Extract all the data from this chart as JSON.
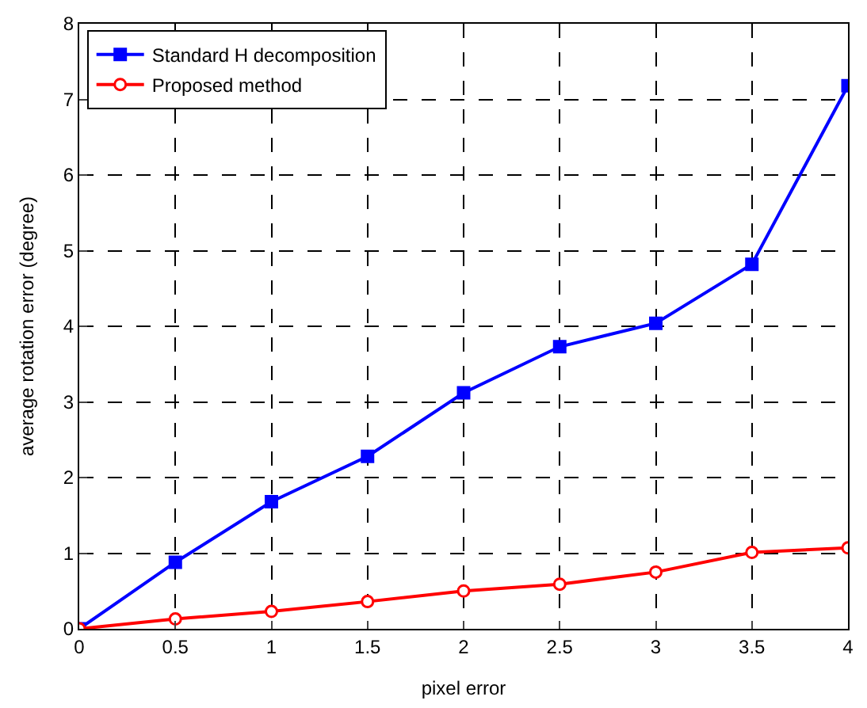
{
  "chart_data": {
    "type": "line",
    "xlabel": "pixel error",
    "ylabel": "average rotation error (degree)",
    "x": [
      0,
      0.5,
      1,
      1.5,
      2,
      2.5,
      3,
      3.5,
      4
    ],
    "series": [
      {
        "name": "Standard H decomposition",
        "color": "#0000ff",
        "marker": "square",
        "values": [
          0,
          0.88,
          1.68,
          2.28,
          3.12,
          3.73,
          4.04,
          4.82,
          7.18
        ]
      },
      {
        "name": "Proposed method",
        "color": "#ff0000",
        "marker": "circle",
        "values": [
          0,
          0.13,
          0.23,
          0.36,
          0.5,
          0.59,
          0.75,
          1.01,
          1.07
        ]
      }
    ],
    "xlim": [
      0,
      4
    ],
    "xticks": [
      0,
      0.5,
      1,
      1.5,
      2,
      2.5,
      3,
      3.5,
      4
    ],
    "ylim": [
      0,
      8
    ],
    "yticks": [
      0,
      1,
      2,
      3,
      4,
      5,
      6,
      7,
      8
    ],
    "grid": true,
    "legend": "top left",
    "line_style": "solid"
  }
}
